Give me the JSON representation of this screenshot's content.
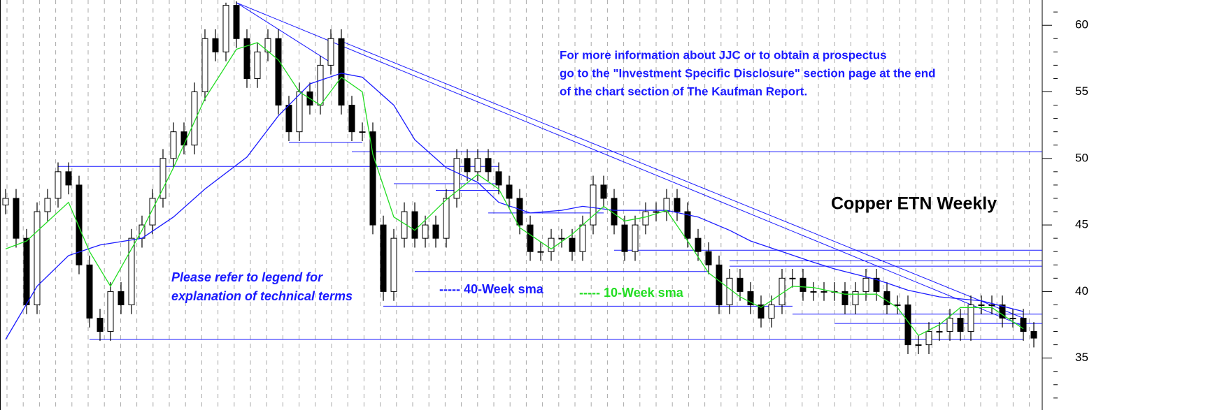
{
  "chart_data": {
    "type": "candlestick",
    "title": "Copper ETN Weekly",
    "annotations": [
      "For more information about JJC or to obtain a prospectus",
      "go to the \"Investment Specific Disclosure\" section page at the end",
      "of the chart section of The Kaufman Report.",
      "Please refer to legend for",
      "explanation of technical terms"
    ],
    "ylim": [
      31.1,
      61.9
    ],
    "yticks": [
      35,
      40,
      45,
      50,
      55,
      60
    ],
    "minor_yticks": [
      32,
      33,
      34,
      36,
      37,
      38,
      39,
      41,
      42,
      43,
      44,
      46,
      47,
      48,
      49,
      51,
      52,
      53,
      54,
      56,
      57,
      58,
      59,
      61
    ],
    "up_color": "#ffffff",
    "down_color": "#000000",
    "open": [
      46.5,
      47,
      44,
      39,
      46,
      47,
      49,
      48,
      42,
      38,
      37,
      40,
      39,
      44,
      45,
      47,
      50,
      52,
      51,
      55,
      59,
      58,
      61.5,
      59,
      56,
      58,
      59,
      54,
      52,
      55,
      54,
      57,
      59,
      54,
      52,
      52,
      45,
      40,
      44,
      46,
      44,
      45,
      44,
      47,
      50,
      49,
      50,
      49,
      48,
      47,
      45,
      43,
      43,
      44,
      44,
      43,
      45,
      48,
      47,
      45,
      43,
      45,
      46,
      46,
      47,
      46,
      44,
      43,
      42,
      39,
      41,
      40,
      39,
      38,
      39,
      41,
      41,
      40,
      40,
      40,
      40,
      39,
      40,
      41,
      40,
      39,
      39,
      36,
      36,
      37,
      37,
      38,
      37,
      39,
      39,
      39,
      38,
      38,
      37
    ],
    "high": [
      47.7,
      47.7,
      44.7,
      46.7,
      47.7,
      49.7,
      49.7,
      48.7,
      42.7,
      38.7,
      40.7,
      40.7,
      44.7,
      45.7,
      47.7,
      50.7,
      52.7,
      52.7,
      55.7,
      59.7,
      59.7,
      61.7,
      61.8,
      59.7,
      58.7,
      59.7,
      59.7,
      54.7,
      55.7,
      55.7,
      57.7,
      59.7,
      59.7,
      54.7,
      52.7,
      52.7,
      45.7,
      44.7,
      46.7,
      46.7,
      45.7,
      45.7,
      47.7,
      50.7,
      50.7,
      50.7,
      50.7,
      49.7,
      48.7,
      47.7,
      45.7,
      43.7,
      44.7,
      44.7,
      44.7,
      45.7,
      48.7,
      48.7,
      47.7,
      45.7,
      45.7,
      46.7,
      46.7,
      47.7,
      47.7,
      46.7,
      44.7,
      43.7,
      42.7,
      41.7,
      41.7,
      40.7,
      39.7,
      39.7,
      41.7,
      41.7,
      41.7,
      40.7,
      40.7,
      40.7,
      40.7,
      40.7,
      41.7,
      41.7,
      40.7,
      39.7,
      39.7,
      36.7,
      37.7,
      37.7,
      38.7,
      38.7,
      39.7,
      39.7,
      39.7,
      39.7,
      38.7,
      38.7,
      37.7
    ],
    "low": [
      45.8,
      43.3,
      38.3,
      38.3,
      45.3,
      46.3,
      47.3,
      41.3,
      37.3,
      36.3,
      36.3,
      38.3,
      38.3,
      43.3,
      44.3,
      46.3,
      49.3,
      50.3,
      50.3,
      54.3,
      57.3,
      57.3,
      58.3,
      55.3,
      55.3,
      57.3,
      53.3,
      51.3,
      51.3,
      53.3,
      53.3,
      56.3,
      53.3,
      51.3,
      51.3,
      44.3,
      39.3,
      39.3,
      43.3,
      43.3,
      43.3,
      43.3,
      43.3,
      46.3,
      48.3,
      48.3,
      48.3,
      47.3,
      46.3,
      44.3,
      42.3,
      42.3,
      42.3,
      43.3,
      42.3,
      42.3,
      44.3,
      46.3,
      44.3,
      42.3,
      42.3,
      44.3,
      45.3,
      45.3,
      45.3,
      43.3,
      42.3,
      41.3,
      38.3,
      38.3,
      39.3,
      38.3,
      37.3,
      37.3,
      38.3,
      40.3,
      39.3,
      39.3,
      39.3,
      39.3,
      38.3,
      38.3,
      39.3,
      39.3,
      38.3,
      38.3,
      35.3,
      35.3,
      35.3,
      36.3,
      36.3,
      36.3,
      36.3,
      38.3,
      38.3,
      37.3,
      37.3,
      36.3,
      35.8
    ],
    "close": [
      47,
      44,
      39,
      46,
      47,
      49,
      48,
      42,
      38,
      37,
      40,
      39,
      44,
      45,
      47,
      50,
      52,
      51,
      55,
      59,
      58,
      61.5,
      59,
      56,
      58,
      59,
      54,
      52,
      55,
      54,
      57,
      59,
      54,
      52,
      52,
      45,
      40,
      44,
      46,
      44,
      45,
      44,
      47,
      50,
      49,
      50,
      49,
      48,
      47,
      45,
      43,
      43,
      44,
      44,
      43,
      45,
      48,
      47,
      45,
      43,
      45,
      46,
      46,
      47,
      46,
      44,
      43,
      42,
      39,
      41,
      40,
      39,
      38,
      39,
      41,
      41,
      40,
      40,
      40,
      40,
      39,
      40,
      41,
      40,
      39,
      39,
      36,
      36,
      37,
      37,
      38,
      37,
      39,
      39,
      39,
      38,
      38,
      37,
      36.5
    ],
    "series": [
      {
        "name": "----- 40-Week sma",
        "color": "#1a1aff",
        "x": [
          0,
          3,
          6,
          9,
          13,
          16,
          19,
          23,
          26,
          29,
          32,
          34,
          37,
          39,
          42,
          45,
          47,
          50,
          53,
          55,
          58,
          61,
          63,
          66,
          69,
          71,
          74,
          77,
          79,
          83,
          86,
          89,
          93,
          97
        ],
        "values": [
          36.4,
          40.4,
          42.7,
          43.5,
          44,
          45.6,
          47.7,
          50.1,
          53.2,
          55.6,
          56.4,
          56.1,
          54,
          51.4,
          49.3,
          48.2,
          46.7,
          45.9,
          46.1,
          46.4,
          46.1,
          46.1,
          46.1,
          45.6,
          44.6,
          43.8,
          43,
          42.2,
          41.7,
          40.9,
          40.1,
          39.6,
          39.3,
          38.5
        ]
      },
      {
        "name": "----- 10-Week sma",
        "color": "#22dd22",
        "x": [
          0,
          2,
          6,
          8,
          10,
          13,
          16,
          19,
          22,
          24,
          26,
          28,
          30,
          32,
          34,
          35,
          37,
          39,
          42,
          45,
          47,
          49,
          52,
          54,
          57,
          59,
          61,
          63,
          65,
          67,
          70,
          72,
          75,
          77,
          80,
          83,
          85,
          87,
          89,
          91,
          94,
          97
        ],
        "values": [
          43.2,
          43.8,
          46.7,
          43,
          40.4,
          44.6,
          49.3,
          54.5,
          58.2,
          58.7,
          57.4,
          55,
          54,
          56.1,
          55,
          50.3,
          45.6,
          44.6,
          46.9,
          48.8,
          47.7,
          44.8,
          43.2,
          44.3,
          46.4,
          45.3,
          45.6,
          46.1,
          43.8,
          41.4,
          39.6,
          38.8,
          40.4,
          40.3,
          39.8,
          39.8,
          38.8,
          36.7,
          37.5,
          38.8,
          38.8,
          37.2
        ]
      }
    ],
    "levels": [
      {
        "value": 49.4,
        "from": 5,
        "to": 47
      },
      {
        "value": 50.5,
        "from": 33,
        "to": 99
      },
      {
        "value": 51.2,
        "from": 27,
        "to": 34
      },
      {
        "value": 48.1,
        "from": 37,
        "to": 47
      },
      {
        "value": 47.6,
        "from": 41,
        "to": 47
      },
      {
        "value": 45.9,
        "from": 46,
        "to": 57
      },
      {
        "value": 43.1,
        "from": 58,
        "to": 99
      },
      {
        "value": 42.3,
        "from": 69,
        "to": 99
      },
      {
        "value": 41.9,
        "from": 69,
        "to": 99
      },
      {
        "value": 41.5,
        "from": 39,
        "to": 67
      },
      {
        "value": 38.9,
        "from": 36,
        "to": 75
      },
      {
        "value": 38.3,
        "from": 75,
        "to": 99
      },
      {
        "value": 37.6,
        "from": 79,
        "to": 99
      },
      {
        "value": 36.4,
        "from": 8,
        "to": 97
      }
    ],
    "trendlines": [
      {
        "x": [
          22,
          97
        ],
        "values": [
          61.7,
          37.4
        ]
      },
      {
        "x": [
          22,
          31
        ],
        "values": [
          61.7,
          57.2
        ]
      },
      {
        "x": [
          32,
          97
        ],
        "values": [
          58.8,
          38
        ]
      }
    ]
  }
}
